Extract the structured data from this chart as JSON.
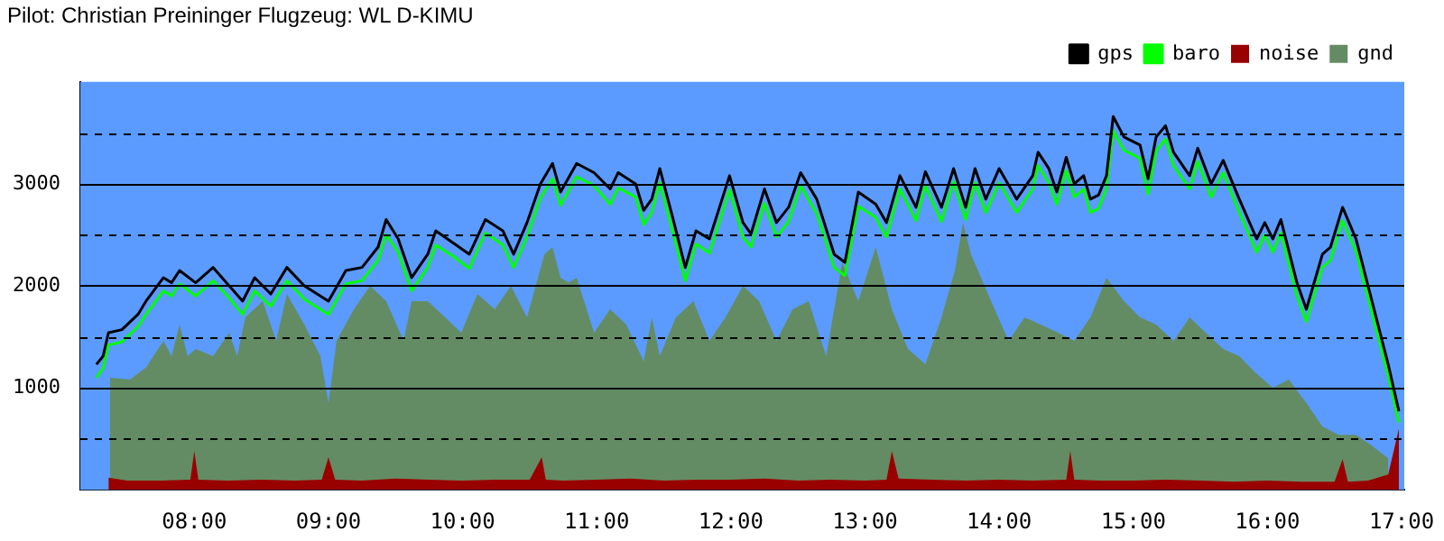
{
  "chart_data": {
    "type": "line",
    "title": "Pilot: Christian Preininger Flugzeug: WL D-KIMU",
    "xlim": [
      7.15,
      17.02
    ],
    "xticks": [
      {
        "value": 8,
        "label": "08:00"
      },
      {
        "value": 9,
        "label": "09:00"
      },
      {
        "value": 10,
        "label": "10:00"
      },
      {
        "value": 11,
        "label": "11:00"
      },
      {
        "value": 12,
        "label": "12:00"
      },
      {
        "value": 13,
        "label": "13:00"
      },
      {
        "value": 14,
        "label": "14:00"
      },
      {
        "value": 15,
        "label": "15:00"
      },
      {
        "value": 16,
        "label": "16:00"
      },
      {
        "value": 17,
        "label": "17:00"
      }
    ],
    "ylim": [
      0,
      4000
    ],
    "yticks": [
      {
        "value": 500,
        "label": null
      },
      1000,
      {
        "value": 1500,
        "label": null
      },
      2000,
      {
        "value": 2500,
        "label": null
      },
      3000,
      {
        "value": 3500,
        "label": null
      }
    ],
    "grid": "y",
    "legend": "top right",
    "marker": "none",
    "line_style": "solid",
    "series": [
      {
        "name": "gnd",
        "type": "area",
        "color": "#648c64",
        "x": [
          7.37,
          7.52,
          7.64,
          7.77,
          7.83,
          7.89,
          7.95,
          8.01,
          8.14,
          8.26,
          8.32,
          8.38,
          8.51,
          8.61,
          8.69,
          8.82,
          8.94,
          9.0,
          9.06,
          9.19,
          9.31,
          9.43,
          9.56,
          9.62,
          9.74,
          9.87,
          9.99,
          10.11,
          10.24,
          10.36,
          10.48,
          10.61,
          10.67,
          10.73,
          10.79,
          10.85,
          10.98,
          11.1,
          11.22,
          11.35,
          11.41,
          11.47,
          11.59,
          11.72,
          11.84,
          11.96,
          12.09,
          12.21,
          12.34,
          12.46,
          12.58,
          12.71,
          12.83,
          12.95,
          13.08,
          13.2,
          13.32,
          13.45,
          13.57,
          13.67,
          13.73,
          13.79,
          13.94,
          14.07,
          14.19,
          14.31,
          14.44,
          14.56,
          14.68,
          14.8,
          14.93,
          15.05,
          15.17,
          15.3,
          15.42,
          15.54,
          15.67,
          15.79,
          15.91,
          16.04,
          16.16,
          16.29,
          16.41,
          16.53,
          16.66,
          16.78,
          16.9
        ],
        "values": [
          1100,
          1080,
          1200,
          1460,
          1310,
          1620,
          1310,
          1380,
          1310,
          1540,
          1310,
          1690,
          1850,
          1460,
          1920,
          1620,
          1310,
          850,
          1460,
          1770,
          2000,
          1850,
          1460,
          1850,
          1850,
          1690,
          1540,
          1920,
          1770,
          2000,
          1690,
          2310,
          2380,
          2080,
          2030,
          2080,
          1540,
          1770,
          1620,
          1260,
          1690,
          1310,
          1690,
          1850,
          1460,
          1690,
          2000,
          1850,
          1460,
          1770,
          1850,
          1310,
          2230,
          1850,
          2380,
          1770,
          1380,
          1230,
          1690,
          2150,
          2620,
          2310,
          1850,
          1460,
          1690,
          1620,
          1540,
          1460,
          1690,
          2080,
          1850,
          1690,
          1620,
          1460,
          1690,
          1540,
          1380,
          1310,
          1150,
          1000,
          1080,
          850,
          620,
          540,
          540,
          430,
          310
        ]
      },
      {
        "name": "noise",
        "type": "area",
        "color": "#990000",
        "x": [
          7.36,
          7.5,
          7.75,
          7.97,
          8.0,
          8.03,
          8.25,
          8.5,
          8.75,
          8.95,
          9.0,
          9.05,
          9.25,
          9.5,
          9.75,
          10.0,
          10.25,
          10.5,
          10.59,
          10.62,
          10.75,
          11.0,
          11.25,
          11.5,
          11.75,
          12.0,
          12.25,
          12.5,
          12.75,
          13.0,
          13.16,
          13.2,
          13.25,
          13.5,
          13.75,
          14.0,
          14.25,
          14.5,
          14.53,
          14.56,
          14.75,
          15.0,
          15.25,
          15.5,
          15.75,
          16.0,
          16.25,
          16.5,
          16.56,
          16.6,
          16.75,
          16.9,
          16.98
        ],
        "values": [
          120,
          90,
          90,
          100,
          380,
          100,
          90,
          100,
          90,
          100,
          320,
          100,
          90,
          110,
          100,
          90,
          100,
          100,
          320,
          100,
          90,
          100,
          110,
          90,
          100,
          100,
          110,
          90,
          100,
          90,
          100,
          380,
          110,
          100,
          90,
          100,
          90,
          100,
          380,
          100,
          90,
          90,
          100,
          90,
          80,
          90,
          80,
          80,
          300,
          80,
          90,
          150,
          600
        ]
      },
      {
        "name": "baro",
        "color": "#00ff00",
        "x": [
          7.27,
          7.32,
          7.36,
          7.46,
          7.58,
          7.64,
          7.77,
          7.83,
          7.89,
          8.01,
          8.14,
          8.26,
          8.36,
          8.45,
          8.57,
          8.69,
          8.82,
          9.0,
          9.13,
          9.25,
          9.37,
          9.43,
          9.52,
          9.62,
          9.74,
          9.8,
          9.93,
          10.05,
          10.17,
          10.3,
          10.38,
          10.48,
          10.58,
          10.67,
          10.73,
          10.85,
          10.98,
          11.1,
          11.16,
          11.29,
          11.35,
          11.41,
          11.47,
          11.57,
          11.66,
          11.74,
          11.84,
          11.99,
          12.09,
          12.15,
          12.25,
          12.34,
          12.43,
          12.52,
          12.64,
          12.77,
          12.85,
          12.95,
          13.08,
          13.16,
          13.26,
          13.38,
          13.45,
          13.57,
          13.66,
          13.75,
          13.82,
          13.9,
          14.0,
          14.13,
          14.25,
          14.29,
          14.37,
          14.43,
          14.5,
          14.56,
          14.63,
          14.68,
          14.74,
          14.8,
          14.85,
          14.93,
          15.05,
          15.11,
          15.17,
          15.24,
          15.3,
          15.42,
          15.48,
          15.58,
          15.67,
          15.79,
          15.92,
          15.98,
          16.04,
          16.1,
          16.22,
          16.29,
          16.41,
          16.47,
          16.56,
          16.66,
          16.75,
          16.9,
          16.98
        ],
        "values": [
          1100,
          1190,
          1420,
          1450,
          1600,
          1720,
          1950,
          1900,
          2020,
          1900,
          2050,
          1880,
          1720,
          1950,
          1800,
          2050,
          1870,
          1720,
          2020,
          2050,
          2250,
          2500,
          2330,
          1950,
          2180,
          2400,
          2290,
          2170,
          2520,
          2400,
          2180,
          2480,
          2860,
          3050,
          2790,
          3070,
          2980,
          2800,
          2960,
          2870,
          2600,
          2720,
          3010,
          2510,
          2050,
          2410,
          2320,
          2940,
          2480,
          2380,
          2810,
          2480,
          2630,
          2980,
          2710,
          2180,
          2100,
          2780,
          2670,
          2480,
          2950,
          2640,
          2980,
          2630,
          3020,
          2650,
          3010,
          2720,
          3010,
          2720,
          2950,
          3180,
          3010,
          2800,
          3130,
          2870,
          2950,
          2720,
          2760,
          2950,
          3520,
          3330,
          3250,
          2900,
          3320,
          3440,
          3180,
          2950,
          3220,
          2870,
          3110,
          2720,
          2330,
          2500,
          2330,
          2520,
          1900,
          1650,
          2180,
          2250,
          2640,
          2340,
          1880,
          1120,
          660
        ]
      },
      {
        "name": "gps",
        "color": "#000000",
        "x": [
          7.27,
          7.32,
          7.36,
          7.46,
          7.58,
          7.64,
          7.77,
          7.83,
          7.89,
          8.01,
          8.14,
          8.26,
          8.36,
          8.45,
          8.57,
          8.69,
          8.82,
          9.0,
          9.13,
          9.25,
          9.37,
          9.43,
          9.52,
          9.62,
          9.74,
          9.8,
          9.93,
          10.05,
          10.17,
          10.3,
          10.38,
          10.48,
          10.58,
          10.67,
          10.73,
          10.85,
          10.98,
          11.1,
          11.16,
          11.29,
          11.35,
          11.41,
          11.47,
          11.57,
          11.66,
          11.74,
          11.84,
          11.99,
          12.09,
          12.15,
          12.25,
          12.34,
          12.43,
          12.52,
          12.64,
          12.77,
          12.85,
          12.95,
          13.08,
          13.16,
          13.26,
          13.38,
          13.45,
          13.57,
          13.66,
          13.75,
          13.82,
          13.9,
          14.0,
          14.13,
          14.25,
          14.29,
          14.37,
          14.43,
          14.5,
          14.56,
          14.63,
          14.68,
          14.74,
          14.8,
          14.85,
          14.93,
          15.05,
          15.11,
          15.17,
          15.24,
          15.3,
          15.42,
          15.48,
          15.58,
          15.67,
          15.79,
          15.92,
          15.98,
          16.04,
          16.1,
          16.22,
          16.29,
          16.41,
          16.47,
          16.56,
          16.66,
          16.75,
          16.9,
          16.98
        ],
        "values": [
          1230,
          1310,
          1540,
          1570,
          1720,
          1850,
          2080,
          2030,
          2150,
          2030,
          2180,
          2000,
          1850,
          2080,
          1920,
          2180,
          2000,
          1850,
          2150,
          2180,
          2380,
          2650,
          2460,
          2080,
          2310,
          2540,
          2420,
          2310,
          2650,
          2540,
          2310,
          2620,
          3000,
          3200,
          2920,
          3200,
          3110,
          2950,
          3110,
          3000,
          2740,
          2850,
          3150,
          2650,
          2180,
          2540,
          2460,
          3080,
          2620,
          2510,
          2950,
          2620,
          2770,
          3110,
          2850,
          2310,
          2230,
          2920,
          2800,
          2620,
          3080,
          2770,
          3120,
          2770,
          3150,
          2770,
          3150,
          2850,
          3150,
          2850,
          3080,
          3310,
          3150,
          2920,
          3260,
          3000,
          3080,
          2850,
          2890,
          3080,
          3660,
          3460,
          3380,
          3050,
          3460,
          3570,
          3310,
          3080,
          3350,
          3000,
          3230,
          2850,
          2460,
          2620,
          2460,
          2650,
          2030,
          1770,
          2310,
          2380,
          2770,
          2460,
          2000,
          1230,
          770
        ]
      }
    ]
  }
}
